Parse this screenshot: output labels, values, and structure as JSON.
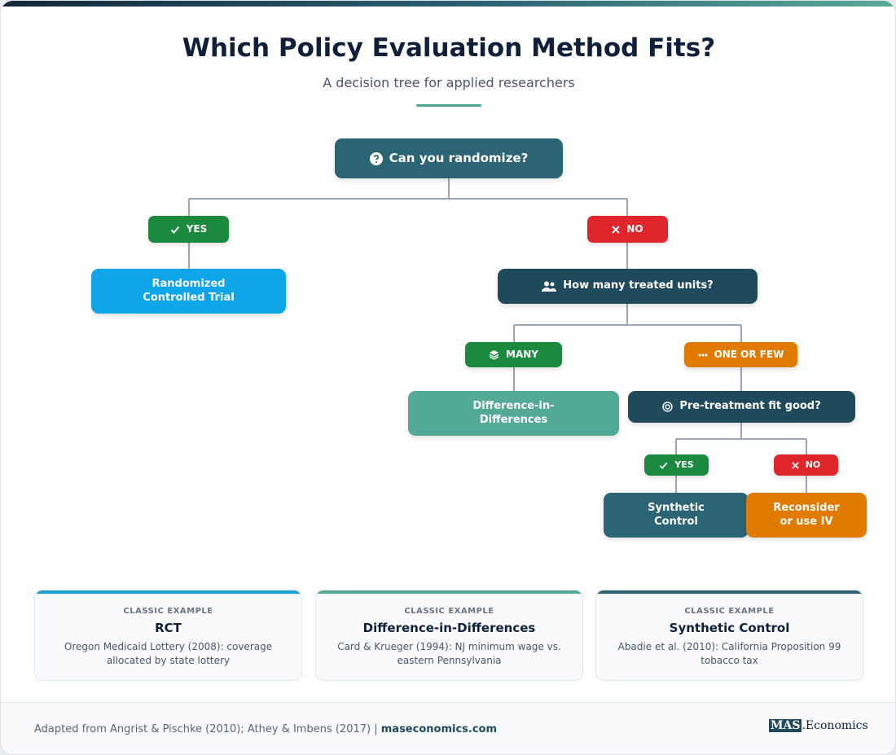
{
  "header": {
    "title": "Which Policy Evaluation Method Fits?",
    "subtitle": "A decision tree for applied researchers"
  },
  "nodes": [
    {
      "label": "Can you randomize?"
    },
    {
      "label": "YES"
    },
    {
      "label": "NO"
    },
    {
      "label": "Randomized Controlled Trial"
    },
    {
      "label": "How many treated units?"
    },
    {
      "label": "MANY"
    },
    {
      "label": "ONE OR FEW"
    },
    {
      "label": "Difference-in-Differences"
    },
    {
      "label": "Pre-treatment fit good?"
    },
    {
      "label": "YES"
    },
    {
      "label": "NO"
    },
    {
      "label": "Synthetic Control"
    },
    {
      "label": "Reconsider or use IV"
    }
  ],
  "examples": [
    {
      "kicker": "CLASSIC EXAMPLE",
      "title": "RCT",
      "text": "Oregon Medicaid Lottery (2008): coverage allocated by state lottery"
    },
    {
      "kicker": "CLASSIC EXAMPLE",
      "title": "Difference-in-Differences",
      "text": "Card & Krueger (1994): NJ minimum wage vs. eastern Pennsylvania"
    },
    {
      "kicker": "CLASSIC EXAMPLE",
      "title": "Synthetic Control",
      "text": "Abadie et al. (2010): California Proposition 99 tobacco tax"
    }
  ],
  "footer": {
    "source": "Adapted from Angrist & Pischke (2010); Athey & Imbens (2017) |",
    "link": "maseconomics.com",
    "logo_mark": "MAS",
    "logo_text": ".Economics"
  }
}
